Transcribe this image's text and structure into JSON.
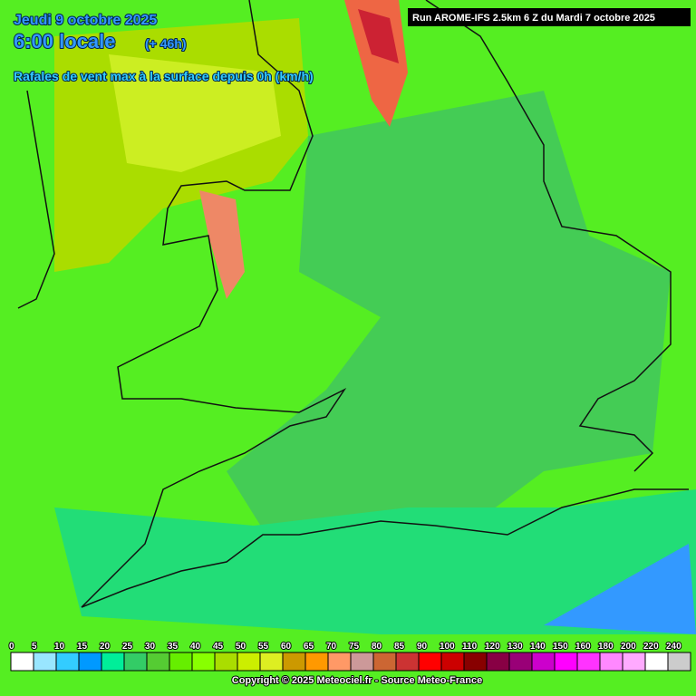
{
  "header": {
    "date": "Jeudi 9 octobre 2025",
    "time": "6:00 locale",
    "lead": "(+ 46h)",
    "subtitle": "Rafales de vent max à la surface depuis 0h (km/h)"
  },
  "run": "Run AROME-IFS 2.5km 6 Z du Mardi 7 octobre 2025",
  "legend": {
    "labels": [
      0,
      5,
      10,
      15,
      20,
      25,
      30,
      35,
      40,
      45,
      50,
      55,
      60,
      65,
      70,
      75,
      80,
      85,
      90,
      100,
      110,
      120,
      130,
      140,
      150,
      160,
      180,
      200,
      220,
      240
    ],
    "colors": [
      "#ffffff",
      "#99e6ff",
      "#33ccff",
      "#0099ff",
      "#00ee99",
      "#33cc66",
      "#55cc33",
      "#66ee00",
      "#88ff00",
      "#aadd00",
      "#ccee00",
      "#ddee22",
      "#cc9900",
      "#ff9900",
      "#ff9966",
      "#cc9999",
      "#cc6633",
      "#cc3333",
      "#ff0000",
      "#cc0000",
      "#880000",
      "#880044",
      "#990077",
      "#cc00cc",
      "#ff00ff",
      "#ff33ff",
      "#ff88ff",
      "#ffaaff",
      "#ffffff",
      "#cccccc"
    ]
  },
  "copyright": "Copyright © 2025 Meteociel.fr - Source Meteo-France"
}
